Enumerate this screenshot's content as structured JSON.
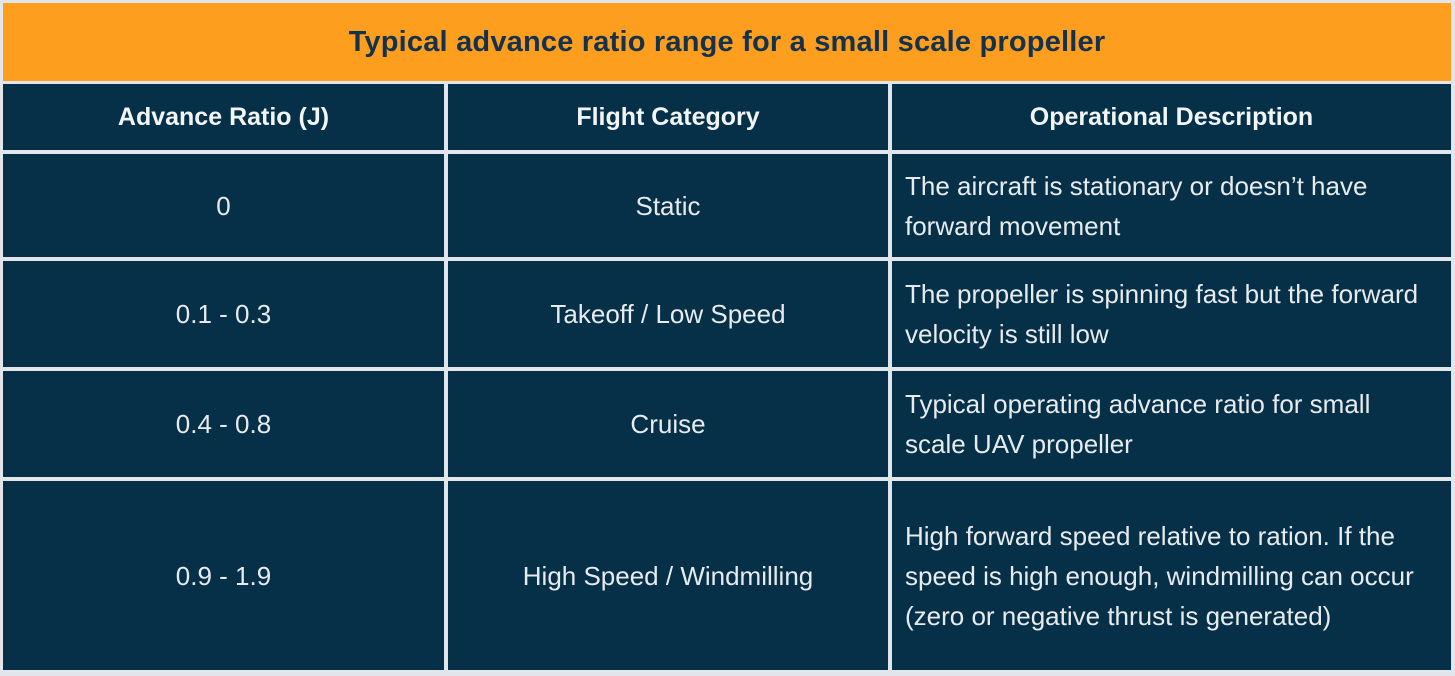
{
  "title": "Typical advance ratio range for a small scale propeller",
  "colors": {
    "banner_orange": "#FD9E1F",
    "cell_navy": "#053048",
    "divider_gray": "#E2E5E9",
    "title_text_navy": "#14324C",
    "header_text": "#F2F5F6",
    "body_text": "#E8EBED"
  },
  "chart_data": {
    "type": "table",
    "title": "Typical advance ratio range for a small scale propeller",
    "columns": [
      "Advance Ratio (J)",
      "Flight Category",
      "Operational Description"
    ],
    "rows": [
      {
        "advance_ratio": "0",
        "flight_category": "Static",
        "operational_description": "The aircraft is stationary or doesn’t have forward movement"
      },
      {
        "advance_ratio": "0.1 - 0.3",
        "flight_category": "Takeoff / Low Speed",
        "operational_description": "The propeller is spinning fast but the forward velocity is still low"
      },
      {
        "advance_ratio": "0.4 - 0.8",
        "flight_category": "Cruise",
        "operational_description": "Typical operating advance ratio for small scale UAV propeller"
      },
      {
        "advance_ratio": "0.9 - 1.9",
        "flight_category": "High Speed / Windmilling",
        "operational_description": "High forward speed relative to ration. If the speed is high enough, windmilling can occur (zero or negative thrust is generated)"
      }
    ]
  }
}
